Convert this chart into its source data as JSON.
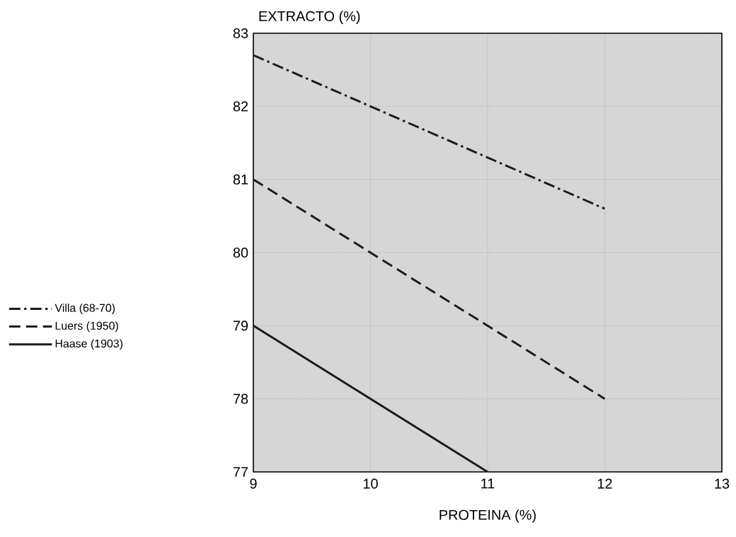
{
  "chart_data": {
    "type": "line",
    "xlabel": "PROTEINA (%)",
    "ylabel": "EXTRACTO (%)",
    "xlim": [
      9,
      13
    ],
    "ylim": [
      77,
      83
    ],
    "xticks": [
      9,
      10,
      11,
      12,
      13
    ],
    "yticks": [
      77,
      78,
      79,
      80,
      81,
      82,
      83
    ],
    "grid": true,
    "legend": "left",
    "marker": "none",
    "series": [
      {
        "name": "Villa (68-70)",
        "color": "#1a1a1a",
        "line_style": "dashdot",
        "x": [
          9,
          12
        ],
        "values": [
          82.7,
          80.6
        ]
      },
      {
        "name": "Luers (1950)",
        "color": "#1a1a1a",
        "line_style": "dashed",
        "x": [
          9,
          12
        ],
        "values": [
          81,
          78
        ]
      },
      {
        "name": "Haase (1903)",
        "color": "#1a1a1a",
        "line_style": "solid",
        "x": [
          9,
          11
        ],
        "values": [
          79,
          77
        ]
      }
    ]
  }
}
